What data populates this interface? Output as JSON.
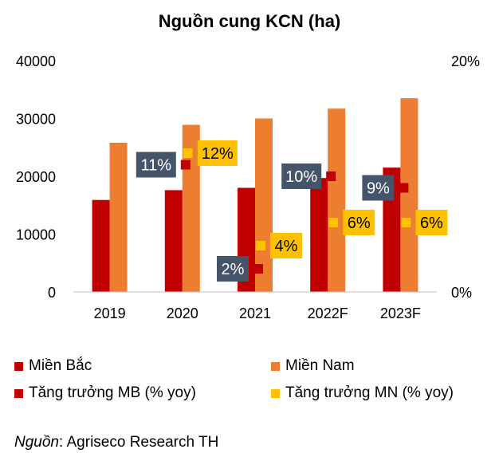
{
  "chart_data": {
    "type": "bar",
    "title": "Nguồn cung KCN (ha)",
    "categories": [
      "2019",
      "2020",
      "2021",
      "2022F",
      "2023F"
    ],
    "ylim": [
      0,
      40000
    ],
    "y_ticks": [
      "0",
      "10000",
      "20000",
      "30000",
      "40000"
    ],
    "y2lim": [
      0,
      20
    ],
    "y2_ticks": [
      "0%",
      "20%"
    ],
    "grid": false,
    "legend_position": "bottom",
    "series": [
      {
        "name": "Miền Bắc",
        "kind": "bar",
        "axis": "left",
        "color": "#C00000",
        "values": [
          15900,
          17600,
          18000,
          19700,
          21500
        ]
      },
      {
        "name": "Miền Nam",
        "kind": "bar",
        "axis": "left",
        "color": "#ED7D31",
        "values": [
          25800,
          28900,
          30000,
          31700,
          33500
        ]
      },
      {
        "name": "Tăng trưởng MB (% yoy)",
        "kind": "marker",
        "axis": "right",
        "color": "#C00000",
        "values": [
          null,
          11,
          2,
          10,
          9
        ],
        "labels": [
          null,
          "11%",
          "2%",
          "10%",
          "9%"
        ],
        "label_bg": "#44546A"
      },
      {
        "name": "Tăng trưởng MN (% yoy)",
        "kind": "marker",
        "axis": "right",
        "color": "#FFC000",
        "values": [
          null,
          12,
          4,
          6,
          6
        ],
        "labels": [
          null,
          "12%",
          "4%",
          "6%",
          "6%"
        ],
        "label_bg": "#FFC000"
      }
    ]
  },
  "legend": {
    "items": [
      {
        "label": "Miền Bắc",
        "color": "#C00000"
      },
      {
        "label": "Miền Nam",
        "color": "#ED7D31"
      },
      {
        "label": "Tăng trưởng MB (% yoy)",
        "color": "#C00000"
      },
      {
        "label": "Tăng trưởng MN (% yoy)",
        "color": "#FFC000"
      }
    ]
  },
  "source": {
    "prefix": "Nguồn",
    "text": ": Agriseco Research TH"
  }
}
